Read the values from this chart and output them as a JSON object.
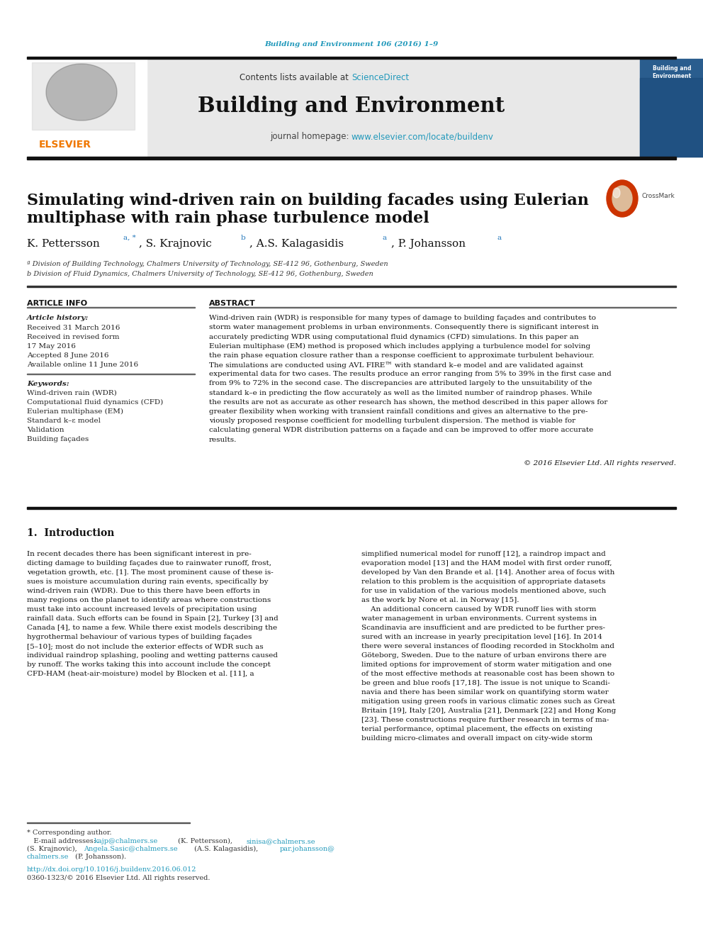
{
  "page_width": 9.92,
  "page_height": 13.23,
  "bg_color": "#ffffff",
  "header_journal_text": "Building and Environment 106 (2016) 1–9",
  "header_journal_color": "#2299bb",
  "journal_name": "Building and Environment",
  "sciencedirect_color": "#2299bb",
  "homepage_url_color": "#2299bb",
  "header_bg_color": "#e8e8e8",
  "header_bar_color": "#111111",
  "elsevier_color": "#f07800",
  "paper_title_line1": "Simulating wind-driven rain on building facades using Eulerian",
  "paper_title_line2": "multiphase with rain phase turbulence model",
  "affil_a": "ª Division of Building Technology, Chalmers University of Technology, SE-412 96, Gothenburg, Sweden",
  "affil_b": "b Division of Fluid Dynamics, Chalmers University of Technology, SE-412 96, Gothenburg, Sweden",
  "article_info_title": "ARTICLE INFO",
  "abstract_title": "ABSTRACT",
  "article_history_label": "Article history:",
  "received": "Received 31 March 2016",
  "revised": "Received in revised form",
  "revised2": "17 May 2016",
  "accepted": "Accepted 8 June 2016",
  "available": "Available online 11 June 2016",
  "keywords_label": "Keywords:",
  "kw1": "Wind-driven rain (WDR)",
  "kw2": "Computational fluid dynamics (CFD)",
  "kw3": "Eulerian multiphase (EM)",
  "kw4": "Standard k–ε model",
  "kw5": "Validation",
  "kw6": "Building façades",
  "copyright": "© 2016 Elsevier Ltd. All rights reserved.",
  "doi_text": "http://dx.doi.org/10.1016/j.buildenv.2016.06.012",
  "doi_color": "#2299bb",
  "issn_text": "0360-1323/© 2016 Elsevier Ltd. All rights reserved.",
  "section1_title": "1.  Introduction",
  "email_color": "#2299bb",
  "abstract_lines": [
    "Wind-driven rain (WDR) is responsible for many types of damage to building façades and contributes to",
    "storm water management problems in urban environments. Consequently there is significant interest in",
    "accurately predicting WDR using computational fluid dynamics (CFD) simulations. In this paper an",
    "Eulerian multiphase (EM) method is proposed which includes applying a turbulence model for solving",
    "the rain phase equation closure rather than a response coefficient to approximate turbulent behaviour.",
    "The simulations are conducted using AVL FIRE™ with standard k–e model and are validated against",
    "experimental data for two cases. The results produce an error ranging from 5% to 39% in the first case and",
    "from 9% to 72% in the second case. The discrepancies are attributed largely to the unsuitability of the",
    "standard k–e in predicting the flow accurately as well as the limited number of raindrop phases. While",
    "the results are not as accurate as other research has shown, the method described in this paper allows for",
    "greater flexibility when working with transient rainfall conditions and gives an alternative to the pre-",
    "viously proposed response coefficient for modelling turbulent dispersion. The method is viable for",
    "calculating general WDR distribution patterns on a façade and can be improved to offer more accurate",
    "results."
  ],
  "intro_col1_lines": [
    "In recent decades there has been significant interest in pre-",
    "dicting damage to building façades due to rainwater runoff, frost,",
    "vegetation growth, etc. [1]. The most prominent cause of these is-",
    "sues is moisture accumulation during rain events, specifically by",
    "wind-driven rain (WDR). Due to this there have been efforts in",
    "many regions on the planet to identify areas where constructions",
    "must take into account increased levels of precipitation using",
    "rainfall data. Such efforts can be found in Spain [2], Turkey [3] and",
    "Canada [4], to name a few. While there exist models describing the",
    "hygrothermal behaviour of various types of building façades",
    "[5–10]; most do not include the exterior effects of WDR such as",
    "individual raindrop splashing, pooling and wetting patterns caused",
    "by runoff. The works taking this into account include the concept",
    "CFD-HAM (heat-air-moisture) model by Blocken et al. [11], a"
  ],
  "intro_col2_lines": [
    "simplified numerical model for runoff [12], a raindrop impact and",
    "evaporation model [13] and the HAM model with first order runoff,",
    "developed by Van den Brande et al. [14]. Another area of focus with",
    "relation to this problem is the acquisition of appropriate datasets",
    "for use in validation of the various models mentioned above, such",
    "as the work by Nore et al. in Norway [15].",
    "    An additional concern caused by WDR runoff lies with storm",
    "water management in urban environments. Current systems in",
    "Scandinavia are insufficient and are predicted to be further pres-",
    "sured with an increase in yearly precipitation level [16]. In 2014",
    "there were several instances of flooding recorded in Stockholm and",
    "Göteborg, Sweden. Due to the nature of urban environs there are",
    "limited options for improvement of storm water mitigation and one",
    "of the most effective methods at reasonable cost has been shown to",
    "be green and blue roofs [17,18]. The issue is not unique to Scandi-",
    "navia and there has been similar work on quantifying storm water",
    "mitigation using green roofs in various climatic zones such as Great",
    "Britain [19], Italy [20], Australia [21], Denmark [22] and Hong Kong",
    "[23]. These constructions require further research in terms of ma-",
    "terial performance, optimal placement, the effects on existing",
    "building micro-climates and overall impact on city-wide storm"
  ]
}
